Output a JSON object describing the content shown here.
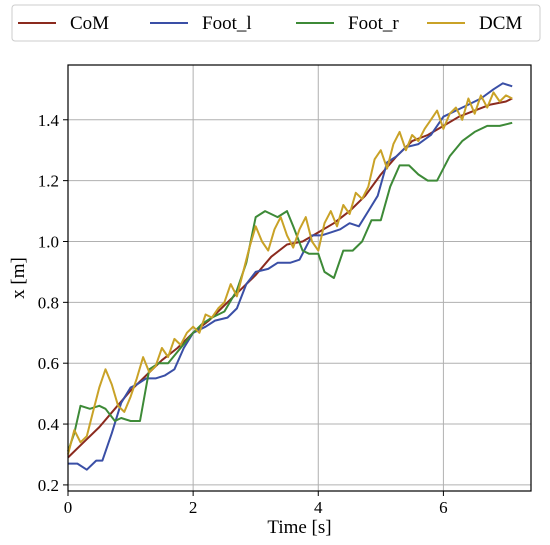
{
  "chart_data": {
    "type": "line",
    "xlabel": "Time [s]",
    "ylabel": "x [m]",
    "xlim": [
      0,
      7.4
    ],
    "ylim": [
      0.18,
      1.58
    ],
    "xticks": [
      0,
      2,
      4,
      6
    ],
    "yticks": [
      0.2,
      0.4,
      0.6,
      0.8,
      1.0,
      1.2,
      1.4
    ],
    "ytick_labels": [
      "0.2",
      "0.4",
      "0.6",
      "0.8",
      "1.0",
      "1.2",
      "1.4"
    ],
    "grid": true,
    "legend_position": "top",
    "series": [
      {
        "name": "CoM",
        "color": "#8b2a1e",
        "x": [
          0,
          0.25,
          0.5,
          0.75,
          1.0,
          1.25,
          1.5,
          1.75,
          2.0,
          2.25,
          2.5,
          2.75,
          3.0,
          3.25,
          3.5,
          3.75,
          4.0,
          4.25,
          4.5,
          4.75,
          5.0,
          5.25,
          5.5,
          5.75,
          6.0,
          6.25,
          6.5,
          6.75,
          7.0,
          7.1
        ],
        "y": [
          0.29,
          0.34,
          0.39,
          0.45,
          0.51,
          0.56,
          0.61,
          0.65,
          0.7,
          0.74,
          0.79,
          0.84,
          0.89,
          0.95,
          0.99,
          1.0,
          1.03,
          1.06,
          1.1,
          1.15,
          1.22,
          1.28,
          1.33,
          1.35,
          1.38,
          1.41,
          1.43,
          1.45,
          1.46,
          1.47
        ]
      },
      {
        "name": "Foot_l",
        "color": "#3a4fa6",
        "x": [
          0,
          0.15,
          0.3,
          0.45,
          0.55,
          0.7,
          0.85,
          1.0,
          1.1,
          1.25,
          1.4,
          1.55,
          1.7,
          1.85,
          2.0,
          2.2,
          2.35,
          2.55,
          2.7,
          2.85,
          3.0,
          3.2,
          3.35,
          3.55,
          3.7,
          3.9,
          4.05,
          4.2,
          4.35,
          4.5,
          4.65,
          4.8,
          4.95,
          5.1,
          5.25,
          5.4,
          5.6,
          5.8,
          6.0,
          6.2,
          6.4,
          6.6,
          6.8,
          6.95,
          7.1
        ],
        "y": [
          0.27,
          0.27,
          0.25,
          0.28,
          0.28,
          0.37,
          0.47,
          0.52,
          0.53,
          0.55,
          0.55,
          0.56,
          0.58,
          0.65,
          0.7,
          0.72,
          0.74,
          0.75,
          0.78,
          0.86,
          0.9,
          0.91,
          0.93,
          0.93,
          0.94,
          1.02,
          1.02,
          1.03,
          1.04,
          1.06,
          1.05,
          1.1,
          1.15,
          1.26,
          1.28,
          1.31,
          1.32,
          1.35,
          1.41,
          1.43,
          1.45,
          1.47,
          1.5,
          1.52,
          1.51
        ]
      },
      {
        "name": "Foot_r",
        "color": "#3d8a37",
        "x": [
          0,
          0.1,
          0.2,
          0.35,
          0.5,
          0.6,
          0.75,
          0.85,
          1.0,
          1.15,
          1.3,
          1.45,
          1.6,
          1.8,
          2.0,
          2.15,
          2.3,
          2.5,
          2.7,
          2.85,
          3.0,
          3.15,
          3.35,
          3.5,
          3.6,
          3.75,
          3.85,
          4.0,
          4.1,
          4.25,
          4.4,
          4.55,
          4.7,
          4.85,
          5.0,
          5.15,
          5.3,
          5.45,
          5.6,
          5.75,
          5.9,
          6.1,
          6.3,
          6.5,
          6.7,
          6.9,
          7.1
        ],
        "y": [
          0.31,
          0.37,
          0.46,
          0.45,
          0.46,
          0.45,
          0.41,
          0.42,
          0.41,
          0.41,
          0.58,
          0.6,
          0.6,
          0.65,
          0.7,
          0.73,
          0.75,
          0.77,
          0.84,
          0.93,
          1.08,
          1.1,
          1.08,
          1.1,
          1.05,
          0.97,
          0.96,
          0.96,
          0.9,
          0.88,
          0.97,
          0.97,
          1.0,
          1.07,
          1.07,
          1.18,
          1.25,
          1.25,
          1.22,
          1.2,
          1.2,
          1.28,
          1.33,
          1.36,
          1.38,
          1.38,
          1.39
        ]
      },
      {
        "name": "DCM",
        "color": "#c9a227",
        "x": [
          0,
          0.1,
          0.2,
          0.3,
          0.4,
          0.5,
          0.6,
          0.7,
          0.8,
          0.9,
          1.0,
          1.1,
          1.2,
          1.3,
          1.4,
          1.5,
          1.6,
          1.7,
          1.8,
          1.9,
          2.0,
          2.1,
          2.2,
          2.3,
          2.4,
          2.5,
          2.6,
          2.7,
          2.8,
          2.9,
          3.0,
          3.1,
          3.2,
          3.3,
          3.4,
          3.5,
          3.6,
          3.7,
          3.8,
          3.9,
          4.0,
          4.1,
          4.2,
          4.3,
          4.4,
          4.5,
          4.6,
          4.7,
          4.8,
          4.9,
          5.0,
          5.1,
          5.2,
          5.3,
          5.4,
          5.5,
          5.6,
          5.7,
          5.8,
          5.9,
          6.0,
          6.1,
          6.2,
          6.3,
          6.4,
          6.5,
          6.6,
          6.7,
          6.8,
          6.9,
          7.0,
          7.1
        ],
        "y": [
          0.3,
          0.38,
          0.34,
          0.36,
          0.44,
          0.52,
          0.58,
          0.53,
          0.46,
          0.44,
          0.49,
          0.55,
          0.62,
          0.57,
          0.59,
          0.65,
          0.62,
          0.68,
          0.66,
          0.7,
          0.72,
          0.7,
          0.76,
          0.75,
          0.78,
          0.8,
          0.86,
          0.82,
          0.9,
          0.98,
          1.05,
          1.0,
          0.97,
          1.04,
          1.08,
          1.02,
          0.98,
          1.04,
          1.08,
          1.0,
          0.97,
          1.06,
          1.1,
          1.05,
          1.12,
          1.09,
          1.16,
          1.14,
          1.18,
          1.27,
          1.3,
          1.24,
          1.32,
          1.36,
          1.3,
          1.35,
          1.33,
          1.37,
          1.4,
          1.43,
          1.37,
          1.42,
          1.44,
          1.4,
          1.47,
          1.42,
          1.48,
          1.44,
          1.49,
          1.46,
          1.48,
          1.47
        ]
      }
    ]
  }
}
